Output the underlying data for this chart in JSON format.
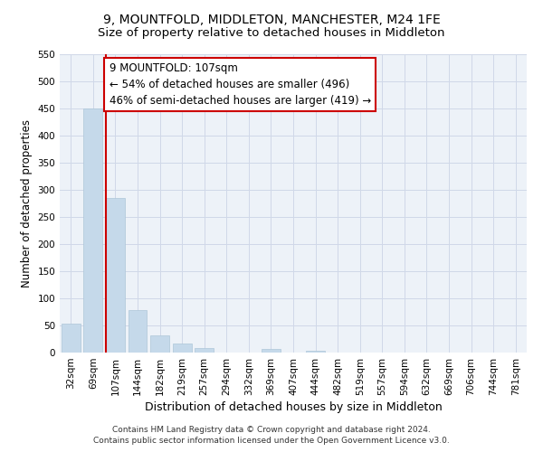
{
  "title": "9, MOUNTFOLD, MIDDLETON, MANCHESTER, M24 1FE",
  "subtitle": "Size of property relative to detached houses in Middleton",
  "xlabel": "Distribution of detached houses by size in Middleton",
  "ylabel": "Number of detached properties",
  "bar_labels": [
    "32sqm",
    "69sqm",
    "107sqm",
    "144sqm",
    "182sqm",
    "219sqm",
    "257sqm",
    "294sqm",
    "332sqm",
    "369sqm",
    "407sqm",
    "444sqm",
    "482sqm",
    "519sqm",
    "557sqm",
    "594sqm",
    "632sqm",
    "669sqm",
    "706sqm",
    "744sqm",
    "781sqm"
  ],
  "bar_values": [
    53,
    450,
    285,
    78,
    32,
    17,
    9,
    0,
    0,
    6,
    0,
    4,
    0,
    0,
    0,
    0,
    0,
    0,
    0,
    0,
    0
  ],
  "property_bin_index": 2,
  "bar_color": "#c5d9ea",
  "bar_edgecolor": "#aec6d8",
  "vline_color": "#cc0000",
  "annotation_line1": "9 MOUNTFOLD: 107sqm",
  "annotation_line2": "← 54% of detached houses are smaller (496)",
  "annotation_line3": "46% of semi-detached houses are larger (419) →",
  "annotation_box_facecolor": "#ffffff",
  "annotation_box_edgecolor": "#cc0000",
  "ylim": [
    0,
    550
  ],
  "yticks": [
    0,
    50,
    100,
    150,
    200,
    250,
    300,
    350,
    400,
    450,
    500,
    550
  ],
  "bg_color": "#edf2f8",
  "grid_color": "#d0d8e8",
  "footer1": "Contains HM Land Registry data © Crown copyright and database right 2024.",
  "footer2": "Contains public sector information licensed under the Open Government Licence v3.0.",
  "title_fontsize": 10,
  "subtitle_fontsize": 9.5,
  "xlabel_fontsize": 9,
  "ylabel_fontsize": 8.5,
  "tick_fontsize": 7.5,
  "annotation_fontsize": 8.5,
  "footer_fontsize": 6.5
}
